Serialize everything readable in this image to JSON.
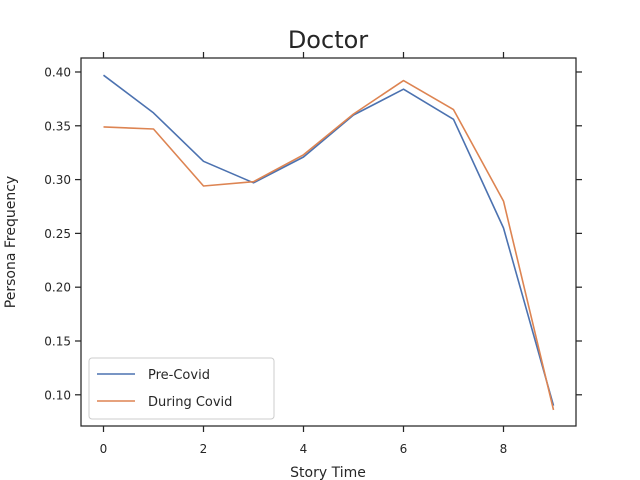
{
  "chart_data": {
    "type": "line",
    "title": "Doctor",
    "xlabel": "Story Time",
    "ylabel": "Persona Frequency",
    "xlim": [
      -0.45,
      9.45
    ],
    "ylim": [
      0.071,
      0.413
    ],
    "xticks": [
      0,
      2,
      4,
      6,
      8
    ],
    "xtick_labels": [
      "0",
      "2",
      "4",
      "6",
      "8"
    ],
    "yticks": [
      0.1,
      0.15,
      0.2,
      0.25,
      0.3,
      0.35,
      0.4
    ],
    "ytick_labels": [
      "0.10",
      "0.15",
      "0.20",
      "0.25",
      "0.30",
      "0.35",
      "0.40"
    ],
    "grid": false,
    "legend_position": "lower-left",
    "x": [
      0,
      1,
      2,
      3,
      4,
      5,
      6,
      7,
      8,
      9
    ],
    "series": [
      {
        "name": "Pre-Covid",
        "color": "#4c72b0",
        "values": [
          0.397,
          0.362,
          0.317,
          0.297,
          0.321,
          0.36,
          0.384,
          0.356,
          0.255,
          0.09
        ]
      },
      {
        "name": "During Covid",
        "color": "#dd8452",
        "values": [
          0.349,
          0.347,
          0.294,
          0.298,
          0.323,
          0.361,
          0.392,
          0.365,
          0.28,
          0.086
        ]
      }
    ]
  }
}
